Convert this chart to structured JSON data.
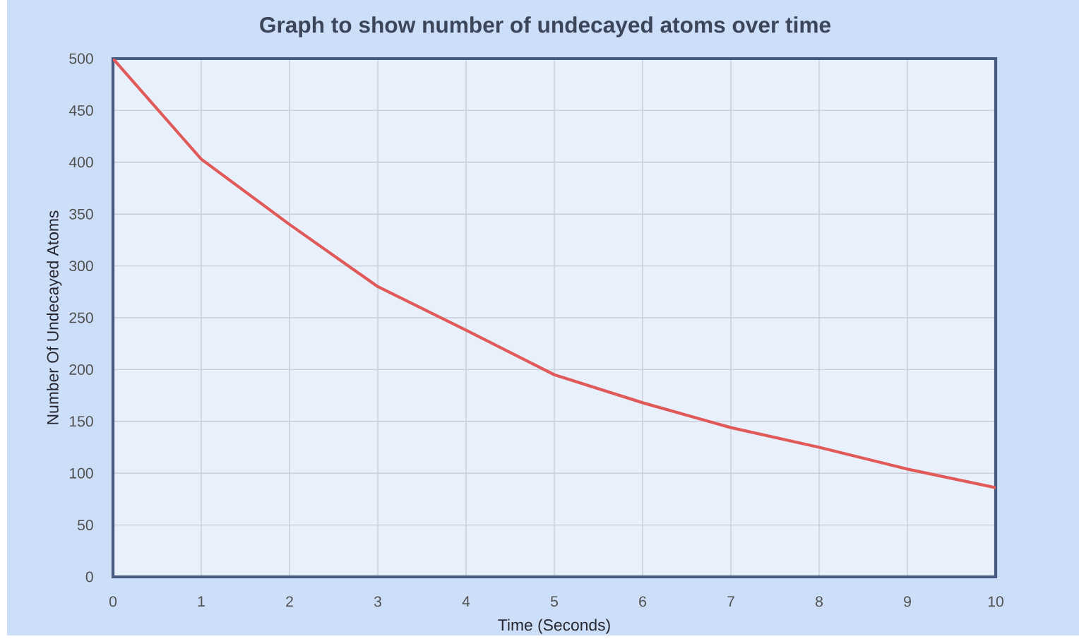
{
  "chart_data": {
    "type": "line",
    "title": "Graph to show number of undecayed atoms over time",
    "xlabel": "Time (Seconds)",
    "ylabel": "Number Of Undecayed Atoms",
    "x": [
      0,
      1,
      2,
      3,
      4,
      5,
      6,
      7,
      8,
      9,
      10
    ],
    "series": [
      {
        "color": "#e05a5a",
        "values": [
          500,
          403,
          340,
          280,
          238,
          195,
          168,
          144,
          125,
          104,
          86
        ]
      }
    ],
    "xlim": [
      0,
      10
    ],
    "xticks": [
      0,
      1,
      2,
      3,
      4,
      5,
      6,
      7,
      8,
      9,
      10
    ],
    "ylim": [
      0,
      500
    ],
    "yticks": [
      0,
      50,
      100,
      150,
      200,
      250,
      300,
      350,
      400,
      450,
      500
    ],
    "grid": true,
    "marker": "none",
    "line_style": "solid"
  }
}
